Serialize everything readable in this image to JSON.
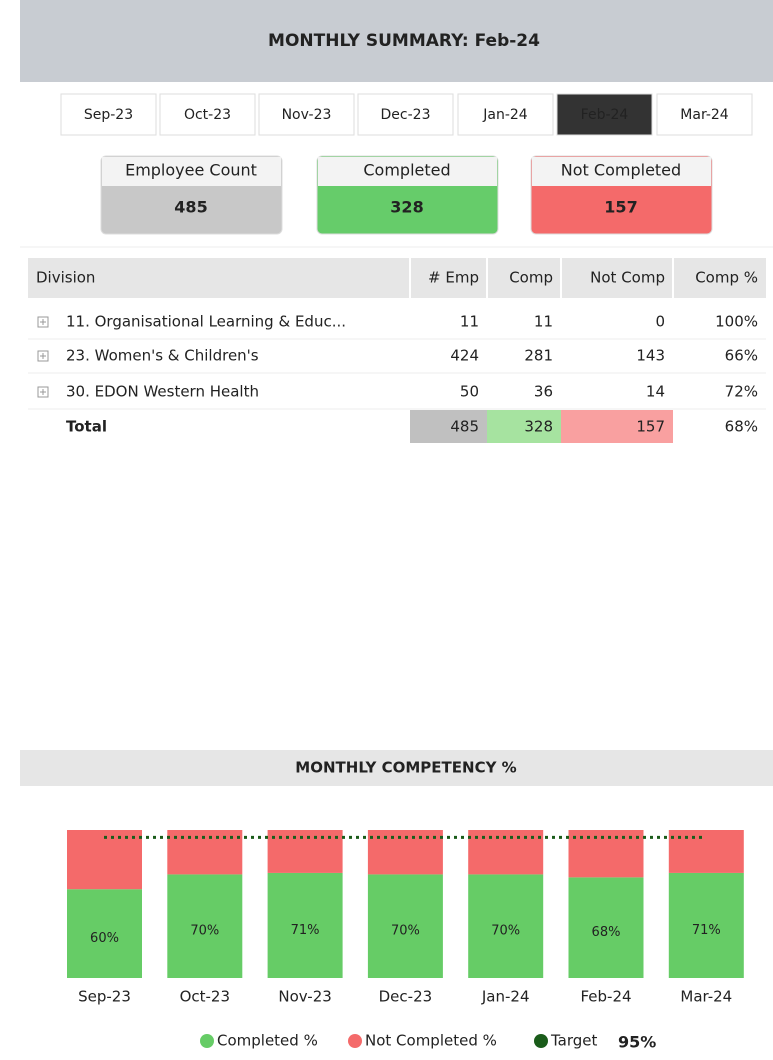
{
  "header": {
    "title": "MONTHLY SUMMARY: Feb-24"
  },
  "tabs": {
    "items": [
      "Sep-23",
      "Oct-23",
      "Nov-23",
      "Dec-23",
      "Jan-24",
      "Feb-24",
      "Mar-24"
    ],
    "selected": 5
  },
  "cards": [
    {
      "label": "Employee Count",
      "value": 485,
      "color": "#c8c8c8"
    },
    {
      "label": "Completed",
      "value": 328,
      "color": "#66cc6a"
    },
    {
      "label": "Not Completed",
      "value": 157,
      "color": "#f46a6a"
    }
  ],
  "table": {
    "columns": [
      "Division",
      "# Emp",
      "Comp",
      "Not Comp",
      "Comp %"
    ],
    "rows": [
      [
        "11. Organisational Learning & Educ...",
        11,
        11,
        0,
        "100%"
      ],
      [
        "23. Women's & Children's",
        424,
        281,
        143,
        "66%"
      ],
      [
        "30. EDON Western Health",
        50,
        36,
        14,
        "72%"
      ]
    ],
    "total": [
      "Total",
      485,
      328,
      157,
      "68%"
    ]
  },
  "chart_data": {
    "type": "bar",
    "stacked": true,
    "title": "MONTHLY COMPETENCY %",
    "categories": [
      "Sep-23",
      "Oct-23",
      "Nov-23",
      "Dec-23",
      "Jan-24",
      "Feb-24",
      "Mar-24"
    ],
    "series": [
      {
        "name": "Completed %",
        "color": "#66cc66",
        "values": [
          60,
          70,
          71,
          70,
          70,
          68,
          71
        ],
        "value_labels": [
          "60%",
          "70%",
          "71%",
          "70%",
          "70%",
          "68%",
          "71%"
        ]
      },
      {
        "name": "Not Completed %",
        "color": "#f46a6a",
        "values": [
          40,
          30,
          29,
          30,
          30,
          32,
          29
        ]
      }
    ],
    "target": {
      "name": "Target",
      "value": 95,
      "label": "95%",
      "color": "#1a5c1a"
    },
    "ylim": [
      0,
      100
    ]
  }
}
